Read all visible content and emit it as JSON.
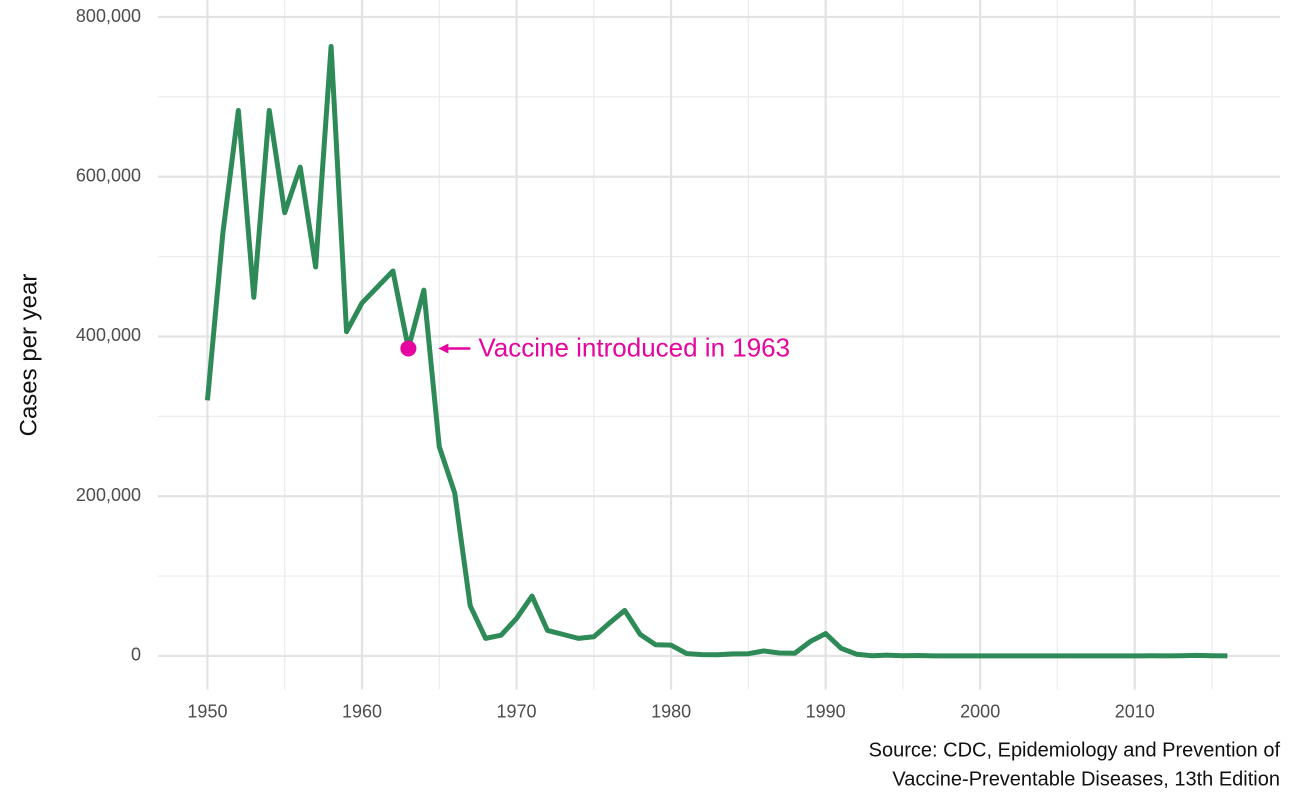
{
  "chart_data": {
    "type": "line",
    "y_label": "Cases per year",
    "caption": [
      "Source: CDC, Epidemiology and Prevention of",
      "Vaccine-Preventable Diseases, 13th Edition"
    ],
    "x": [
      1950,
      1951,
      1952,
      1953,
      1954,
      1955,
      1956,
      1957,
      1958,
      1959,
      1960,
      1961,
      1962,
      1963,
      1964,
      1965,
      1966,
      1967,
      1968,
      1969,
      1970,
      1971,
      1972,
      1973,
      1974,
      1975,
      1976,
      1977,
      1978,
      1979,
      1980,
      1981,
      1982,
      1983,
      1984,
      1985,
      1986,
      1987,
      1988,
      1989,
      1990,
      1991,
      1992,
      1993,
      1994,
      1995,
      1996,
      1997,
      1998,
      1999,
      2000,
      2001,
      2002,
      2003,
      2004,
      2005,
      2006,
      2007,
      2008,
      2009,
      2010,
      2011,
      2012,
      2013,
      2014,
      2015,
      2016
    ],
    "series": [
      {
        "name": "Cases",
        "color": "#2e8b57",
        "values": [
          320000,
          530000,
          683000,
          449000,
          683000,
          555000,
          612000,
          487000,
          763000,
          406000,
          442000,
          462000,
          482000,
          385000,
          458000,
          262000,
          204000,
          63000,
          22000,
          26000,
          47000,
          75000,
          32000,
          27000,
          22000,
          24000,
          41000,
          57000,
          27000,
          14000,
          13500,
          3000,
          1700,
          1500,
          2600,
          2800,
          6300,
          3700,
          3400,
          18000,
          28000,
          9600,
          2200,
          300,
          1000,
          300,
          500,
          140,
          100,
          100,
          86,
          116,
          44,
          56,
          37,
          66,
          55,
          43,
          140,
          71,
          63,
          220,
          55,
          187,
          667,
          188,
          86
        ]
      }
    ],
    "annotation": {
      "text": "Vaccine introduced in 1963",
      "x": 1963,
      "y": 385000,
      "color": "#e5069f"
    },
    "xlim": [
      1946.8,
      2019.4
    ],
    "ylim": [
      -42000,
      800000
    ],
    "xticks": [
      1950,
      1960,
      1970,
      1980,
      1990,
      2000,
      2010
    ],
    "minor_xticks": [
      1955,
      1965,
      1975,
      1985,
      1995,
      2005,
      2015
    ],
    "yticks": [
      0,
      {
        "value": 200000,
        "label": "200,000"
      },
      {
        "value": 400000,
        "label": "400,000"
      },
      {
        "value": 600000,
        "label": "600,000"
      },
      {
        "value": 800000,
        "label": "800,000"
      }
    ],
    "minor_yticks": [
      100000,
      300000,
      500000,
      700000
    ],
    "grid": true
  }
}
